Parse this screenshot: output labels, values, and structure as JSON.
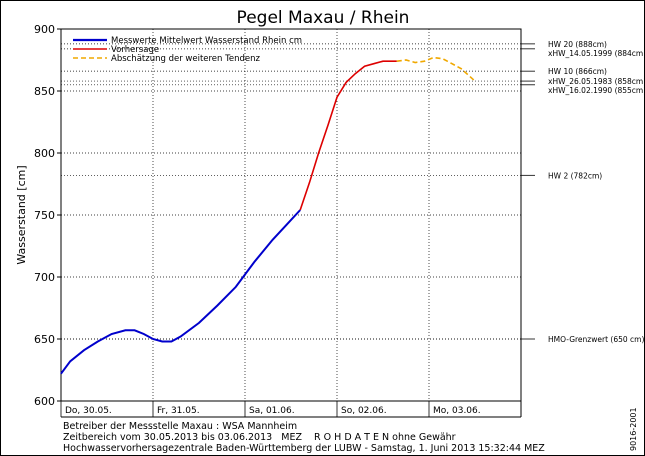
{
  "chart_data": {
    "type": "line",
    "title": "Pegel Maxau / Rhein",
    "ylabel": "Wasserstand [cm]",
    "ylim": [
      600,
      900
    ],
    "yticks": [
      600,
      650,
      700,
      750,
      800,
      850,
      900
    ],
    "xlim_hours_label": "30.05.2013 – 03.06.2013",
    "day_labels": [
      "Do, 30.05.",
      "Fr, 31.05.",
      "Sa, 01.06.",
      "So, 02.06.",
      "Mo, 03.06."
    ],
    "grid": true,
    "legend": {
      "placement": "top-left",
      "entries": [
        {
          "label": "Messwerte Mittelwert Wasserstand Rhein cm",
          "color": "#0000cc",
          "style": "solid"
        },
        {
          "label": "Vorhersage",
          "color": "#dd0000",
          "style": "solid"
        },
        {
          "label": "Abschätzung der weiteren Tendenz",
          "color": "#f0a800",
          "style": "dashed"
        }
      ]
    },
    "series": [
      {
        "name": "Messwerte Mittelwert Wasserstand Rhein cm",
        "color": "#0000cc",
        "x_day": [
          0,
          0.1,
          0.25,
          0.4,
          0.55,
          0.7,
          0.8,
          0.9,
          1.0,
          1.1,
          1.2,
          1.3,
          1.5,
          1.7,
          1.9,
          2.1,
          2.3,
          2.45,
          2.6
        ],
        "values": [
          622,
          632,
          641,
          648,
          654,
          657,
          657,
          654,
          650,
          648,
          648,
          652,
          663,
          677,
          692,
          712,
          730,
          742,
          754
        ]
      },
      {
        "name": "Vorhersage",
        "color": "#dd0000",
        "x_day": [
          2.6,
          2.7,
          2.8,
          2.9,
          3.0,
          3.1,
          3.2,
          3.3,
          3.4,
          3.5,
          3.6,
          3.65
        ],
        "values": [
          754,
          776,
          800,
          822,
          845,
          857,
          864,
          870,
          872,
          874,
          874,
          874
        ]
      },
      {
        "name": "Abschätzung der weiteren Tendenz",
        "color": "#f0a800",
        "x_day": [
          3.65,
          3.75,
          3.85,
          3.95,
          4.05,
          4.15,
          4.25,
          4.35,
          4.5
        ],
        "values": [
          874,
          875,
          873,
          874,
          877,
          876,
          872,
          868,
          858
        ]
      }
    ],
    "reference_lines": [
      {
        "label": "HW 20 (888cm)",
        "value": 888
      },
      {
        "label": "xHW_14.05.1999 (884cm)",
        "value": 884
      },
      {
        "label": "HW 10 (866cm)",
        "value": 866
      },
      {
        "label": "xHW_26.05.1983 (858cm)",
        "value": 858
      },
      {
        "label": "xHW_16.02.1990 (855cm)",
        "value": 855
      },
      {
        "label": "HW 2 (782cm)",
        "value": 782
      },
      {
        "label": "HMO-Grenzwert (650 cm)",
        "value": 650
      }
    ]
  },
  "footer": {
    "line1": "Betreiber der Messstelle Maxau : WSA Mannheim",
    "line2": "Zeitbereich vom 30.05.2013 bis 03.06.2013   MEZ    R O H D A T E N ohne Gewähr",
    "line3": "Hochwasservorhersagezentrale Baden-Württemberg der LUBW - Samstag, 1. Juni 2013 15:32:44 MEZ"
  },
  "side_code": "9016-2001",
  "colors": {
    "dotted_grid": "#000000",
    "reference_band": "#000000"
  }
}
